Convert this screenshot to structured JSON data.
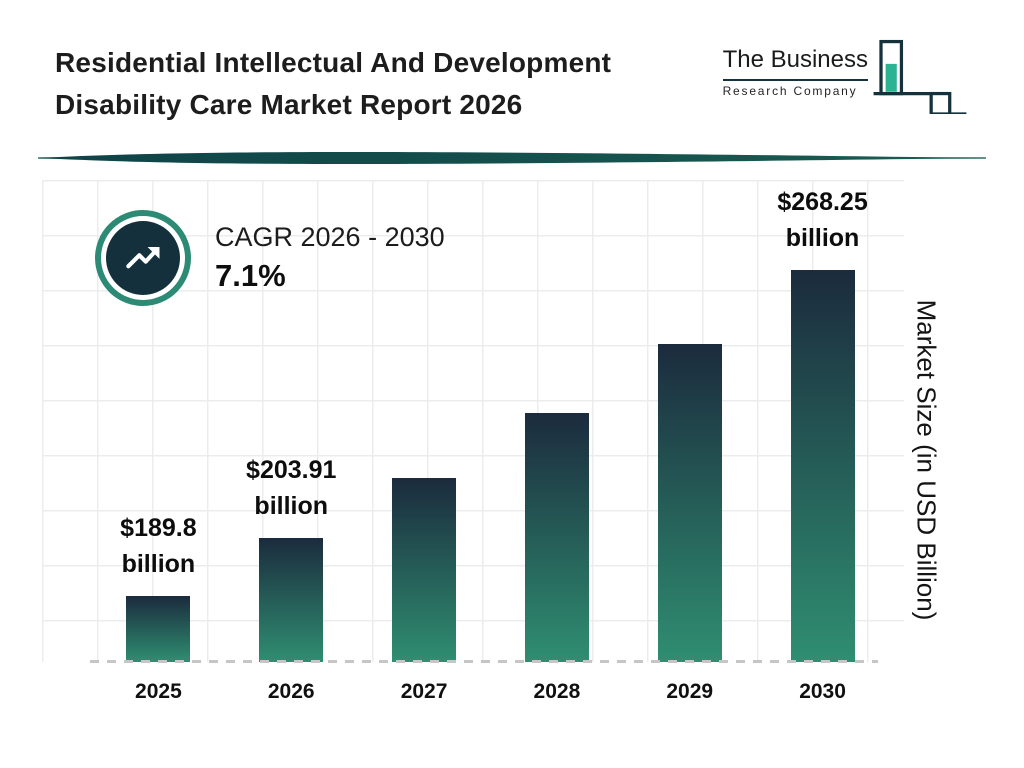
{
  "header": {
    "title_line1": "Residential Intellectual And Development",
    "title_line2": "Disability Care Market Report 2026"
  },
  "logo": {
    "line1": "The Business",
    "line2": "Research Company"
  },
  "cagr": {
    "label": "CAGR 2026 - 2030",
    "value": "7.1%"
  },
  "chart_data": {
    "type": "bar",
    "title": "Residential Intellectual And Development Disability Care Market Report 2026",
    "xlabel": "",
    "ylabel": "Market Size (in USD Billion)",
    "categories": [
      "2025",
      "2026",
      "2027",
      "2028",
      "2029",
      "2030"
    ],
    "values": [
      189.8,
      203.91,
      218.4,
      233.9,
      250.5,
      268.25
    ],
    "units": "USD Billion",
    "bar_labels": [
      {
        "index": 0,
        "line1": "$189.8",
        "line2": "billion"
      },
      {
        "index": 1,
        "line1": "$203.91",
        "line2": "billion"
      },
      {
        "index": 5,
        "line1": "$268.25",
        "line2": "billion"
      }
    ],
    "annotation": "CAGR 2026 - 2030: 7.1%",
    "ylim": [
      174,
      290
    ],
    "grid": true,
    "legend": false,
    "bar_color_top": "#1b2b3d",
    "bar_color_bottom": "#2f8e71",
    "accent_teal": "#2d8b75",
    "dark_navy": "#14303d"
  }
}
